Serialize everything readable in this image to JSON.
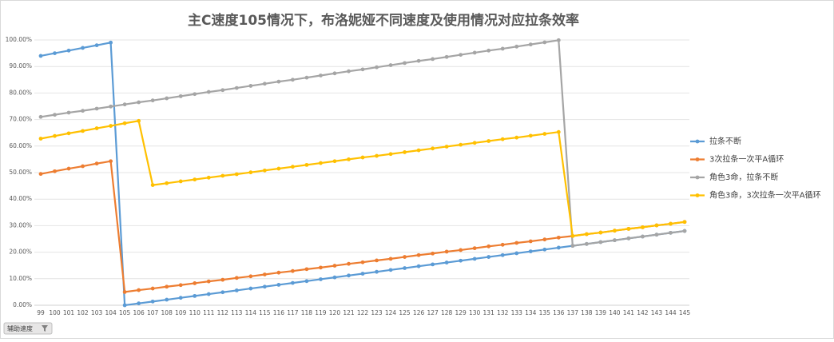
{
  "chart_data": {
    "type": "line",
    "title": "主C速度105情况下，布洛妮娅不同速度及使用情况对应拉条效率",
    "x": [
      99,
      100,
      101,
      102,
      103,
      104,
      105,
      106,
      107,
      108,
      109,
      110,
      111,
      112,
      113,
      114,
      115,
      116,
      117,
      118,
      119,
      120,
      121,
      122,
      123,
      124,
      125,
      126,
      127,
      128,
      129,
      130,
      131,
      132,
      133,
      134,
      135,
      136,
      137,
      138,
      139,
      140,
      141,
      142,
      143,
      144,
      145
    ],
    "xlim": [
      99,
      145
    ],
    "ylim": [
      0,
      100
    ],
    "yticks": [
      {
        "value": 0,
        "label": "0.00%"
      },
      {
        "value": 10,
        "label": "10.00%"
      },
      {
        "value": 20,
        "label": "20.00%"
      },
      {
        "value": 30,
        "label": "30.00%"
      },
      {
        "value": 40,
        "label": "40.00%"
      },
      {
        "value": 50,
        "label": "50.00%"
      },
      {
        "value": 60,
        "label": "60.00%"
      },
      {
        "value": 70,
        "label": "70.00%"
      },
      {
        "value": 80,
        "label": "80.00%"
      },
      {
        "value": 90,
        "label": "90.00%"
      },
      {
        "value": 100,
        "label": "100.00%"
      }
    ],
    "grid": true,
    "legend": "right",
    "series": [
      {
        "name": "拉条不断",
        "color": "#5b9bd5",
        "values": [
          94,
          95,
          96,
          97,
          98,
          99,
          0,
          0.7,
          1.4,
          2.1,
          2.8,
          3.5,
          4.2,
          4.9,
          5.6,
          6.3,
          7,
          7.7,
          8.4,
          9.1,
          9.8,
          10.5,
          11.2,
          11.9,
          12.6,
          13.3,
          14,
          14.7,
          15.4,
          16.1,
          16.8,
          17.5,
          18.2,
          18.9,
          19.6,
          20.3,
          21,
          21.7,
          22.4,
          23.1,
          23.8,
          24.5,
          25.2,
          25.9,
          26.6,
          27.3,
          28
        ]
      },
      {
        "name": "3次拉条一次平A循环",
        "color": "#ed7d31",
        "values": [
          49.5,
          50.5,
          51.5,
          52.4,
          53.4,
          54.3,
          5,
          5.7,
          6.3,
          7,
          7.6,
          8.3,
          9,
          9.6,
          10.3,
          10.9,
          11.6,
          12.3,
          12.9,
          13.6,
          14.2,
          14.9,
          15.6,
          16.2,
          16.9,
          17.5,
          18.2,
          18.9,
          19.5,
          20.2,
          20.8,
          21.5,
          22.2,
          22.8,
          23.5,
          24.1,
          24.8,
          25.5,
          26.1,
          26.8,
          27.4,
          28.1,
          28.8,
          29.4,
          30.1,
          30.7,
          31.4
        ]
      },
      {
        "name": "角色3命，拉条不断",
        "color": "#a5a5a5",
        "values": [
          71,
          71.8,
          72.6,
          73.3,
          74.1,
          74.9,
          75.7,
          76.5,
          77.2,
          78,
          78.8,
          79.6,
          80.4,
          81.1,
          81.9,
          82.7,
          83.5,
          84.3,
          85,
          85.8,
          86.6,
          87.4,
          88.2,
          88.9,
          89.7,
          90.5,
          91.3,
          92.1,
          92.8,
          93.6,
          94.4,
          95.2,
          96,
          96.7,
          97.5,
          98.3,
          99.1,
          99.9,
          22.4,
          23.1,
          23.8,
          24.5,
          25.2,
          25.9,
          26.6,
          27.3,
          28
        ]
      },
      {
        "name": "角色3命，3次拉条一次平A循环",
        "color": "#ffc000",
        "values": [
          62.8,
          63.8,
          64.8,
          65.7,
          66.7,
          67.6,
          68.6,
          69.5,
          45.3,
          46,
          46.7,
          47.4,
          48.1,
          48.8,
          49.4,
          50.1,
          50.8,
          51.5,
          52.2,
          52.9,
          53.6,
          54.3,
          55,
          55.7,
          56.3,
          57,
          57.7,
          58.4,
          59.1,
          59.8,
          60.5,
          61.2,
          61.9,
          62.6,
          63.2,
          63.9,
          64.6,
          65.3,
          26.1,
          26.8,
          27.4,
          28.1,
          28.8,
          29.4,
          30.1,
          30.7,
          31.4
        ]
      }
    ],
    "field_button": "辅助速度"
  }
}
